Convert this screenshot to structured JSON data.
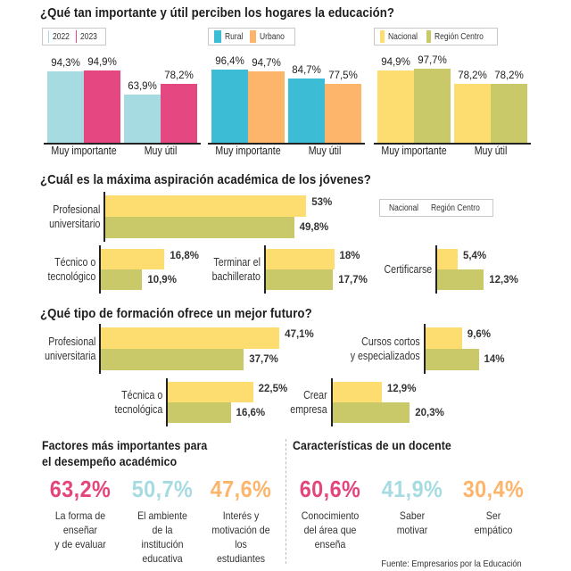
{
  "colors": {
    "y2022": "#a6dbe1",
    "y2023": "#e54880",
    "rural": "#3dbcd6",
    "urbano": "#fdb56c",
    "nacional": "#fddc70",
    "region_centro": "#c9c96a",
    "pink": "#e5457d",
    "light_blue": "#a6dbe1",
    "orange": "#fdb56c"
  },
  "chart_data": [
    {
      "type": "bar",
      "title": "¿Qué tan importante y útil perciben los hogares la educación?",
      "categories": [
        "Muy importante",
        "Muy útil"
      ],
      "series": [
        {
          "name": "2022",
          "values": [
            94.3,
            63.9
          ],
          "labels": [
            "94,3%",
            "63,9%"
          ]
        },
        {
          "name": "2023",
          "values": [
            94.9,
            78.2
          ],
          "labels": [
            "94,9%",
            "78,2%"
          ]
        }
      ],
      "legend": "top",
      "ylim": [
        0,
        100
      ]
    },
    {
      "type": "bar",
      "categories": [
        "Muy importante",
        "Muy útil"
      ],
      "series": [
        {
          "name": "Rural",
          "values": [
            96.4,
            84.7
          ],
          "labels": [
            "96,4%",
            "84,7%"
          ]
        },
        {
          "name": "Urbano",
          "values": [
            94.7,
            77.5
          ],
          "labels": [
            "94,7%",
            "77,5%"
          ]
        }
      ],
      "legend": "top",
      "ylim": [
        0,
        100
      ]
    },
    {
      "type": "bar",
      "categories": [
        "Muy importante",
        "Muy útil"
      ],
      "series": [
        {
          "name": "Nacional",
          "values": [
            94.9,
            78.2
          ],
          "labels": [
            "94,9%",
            "78,2%"
          ]
        },
        {
          "name": "Región Centro",
          "values": [
            97.7,
            78.2
          ],
          "labels": [
            "97,7%",
            "78,2%"
          ]
        }
      ],
      "legend": "top",
      "ylim": [
        0,
        100
      ]
    },
    {
      "type": "bar",
      "orientation": "horizontal",
      "title": "¿Cuál es la máxima aspiración académica de los jóvenes?",
      "categories": [
        "Profesional universitario",
        "Técnico o tecnológico",
        "Terminar el bachillerato",
        "Certificarse"
      ],
      "series": [
        {
          "name": "Nacional",
          "values": [
            53,
            16.8,
            18,
            5.4
          ],
          "labels": [
            "53%",
            "16,8%",
            "18%",
            "5,4%"
          ]
        },
        {
          "name": "Región Centro",
          "values": [
            49.8,
            10.9,
            17.7,
            12.3
          ],
          "labels": [
            "49,8%",
            "10,9%",
            "17,7%",
            "12,3%"
          ]
        }
      ],
      "legend": "top-right"
    },
    {
      "type": "bar",
      "orientation": "horizontal",
      "title": "¿Qué tipo de formación ofrece un mejor futuro?",
      "categories": [
        "Profesional universitaria",
        "Cursos cortos y especializados",
        "Técnica o tecnológica",
        "Crear empresa"
      ],
      "series": [
        {
          "name": "Nacional",
          "values": [
            47.1,
            9.6,
            22.5,
            12.9
          ],
          "labels": [
            "47,1%",
            "9,6%",
            "22,5%",
            "12,9%"
          ]
        },
        {
          "name": "Región Centro",
          "values": [
            37.7,
            14,
            16.6,
            20.3
          ],
          "labels": [
            "37,7%",
            "14%",
            "16,6%",
            "20,3%"
          ]
        }
      ]
    }
  ],
  "section1": {
    "title": "¿Qué tan importante y útil perciben los hogares la educación?",
    "legends": [
      [
        "2022",
        "2023"
      ],
      [
        "Rural",
        "Urbano"
      ],
      [
        "Nacional",
        "Región Centro"
      ]
    ],
    "cat_labels": [
      "Muy importante",
      "Muy útil"
    ]
  },
  "section2": {
    "title": "¿Cuál es la máxima aspiración académica de los jóvenes?",
    "legend": [
      "Nacional",
      "Región Centro"
    ],
    "rows": [
      {
        "label": "Profesional\nuniversitario"
      },
      {
        "label": "Técnico o\ntecnológico"
      },
      {
        "label": "Terminar el\nbachillerato"
      },
      {
        "label": "Certificarse"
      }
    ]
  },
  "section3": {
    "title": "¿Qué tipo de formación ofrece un mejor futuro?",
    "rows": [
      {
        "label": "Profesional\nuniversitaria"
      },
      {
        "label": "Cursos cortos\ny especializados"
      },
      {
        "label": "Técnica o\ntecnológica"
      },
      {
        "label": "Crear\nempresa"
      }
    ]
  },
  "factores": {
    "title_line1": "Factores más importantes para",
    "title_line2": "el desempeño académico",
    "items": [
      {
        "value": "63,2%",
        "text": "La forma de\nenseñar\ny de evaluar"
      },
      {
        "value": "50,7%",
        "text": "El ambiente\nde la\ninstitución\neducativa"
      },
      {
        "value": "47,6%",
        "text": "Interés y\nmotivación de\nlos\nestudiantes"
      }
    ]
  },
  "docente": {
    "title": "Características de un docente",
    "items": [
      {
        "value": "60,6%",
        "text": "Conocimiento\ndel área que\nenseña"
      },
      {
        "value": "41,9%",
        "text": "Saber\nmotivar"
      },
      {
        "value": "30,4%",
        "text": "Ser\nempático"
      }
    ]
  },
  "source": "Fuente: Empresarios por la Educación"
}
